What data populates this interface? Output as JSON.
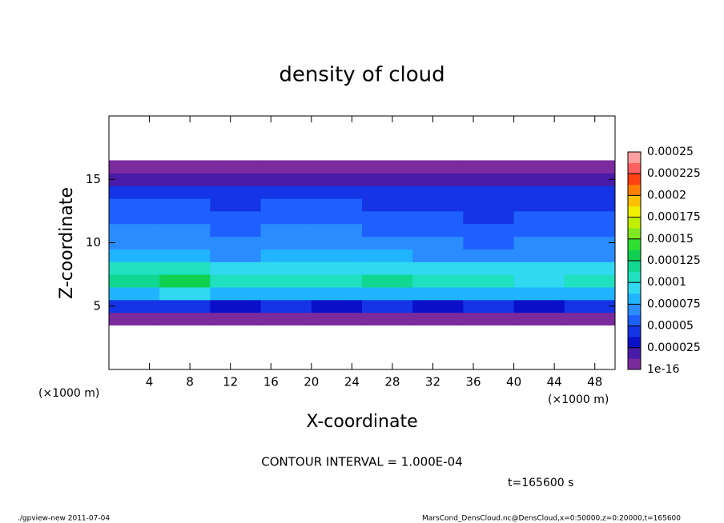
{
  "chart_data": {
    "type": "heatmap",
    "title": "density of cloud",
    "x_label": "X-coordinate",
    "y_label": "Z-coordinate",
    "x_unit": "(×1000 m)",
    "y_unit": "(×1000 m)",
    "xlim": [
      0,
      50
    ],
    "ylim": [
      0,
      20
    ],
    "xticks": [
      4,
      8,
      12,
      16,
      20,
      24,
      28,
      32,
      36,
      40,
      44,
      48
    ],
    "yticks": [
      5,
      10,
      15
    ],
    "x": [
      2.5,
      7.5,
      12.5,
      17.5,
      22.5,
      27.5,
      32.5,
      37.5,
      42.5,
      47.5
    ],
    "z": [
      4,
      5,
      6,
      7,
      8,
      9,
      10,
      11,
      12,
      13,
      14,
      15,
      16
    ],
    "values": [
      [
        1e-06,
        1e-06,
        1e-06,
        1e-06,
        1e-06,
        1e-06,
        1e-06,
        1e-06,
        1e-06,
        1e-06
      ],
      [
        4e-05,
        4e-05,
        3.5e-05,
        4e-05,
        3.5e-05,
        4e-05,
        3.5e-05,
        4e-05,
        3.5e-05,
        4e-05
      ],
      [
        8.5e-05,
        9e-05,
        8e-05,
        8.5e-05,
        8e-05,
        8.5e-05,
        8e-05,
        8e-05,
        8e-05,
        8.5e-05
      ],
      [
        0.00012,
        0.00013,
        0.000105,
        0.00011,
        0.00011,
        0.000115,
        0.000105,
        0.000105,
        0.0001,
        0.000105
      ],
      [
        0.000105,
        0.00011,
        9.5e-05,
        0.0001,
        0.0001,
        0.0001,
        9.5e-05,
        9.5e-05,
        9.5e-05,
        9.5e-05
      ],
      [
        8e-05,
        8e-05,
        7.5e-05,
        8e-05,
        8e-05,
        8e-05,
        7.5e-05,
        7.5e-05,
        7.5e-05,
        7.5e-05
      ],
      [
        7e-05,
        7e-05,
        6.5e-05,
        7e-05,
        7e-05,
        6.5e-05,
        6.5e-05,
        6e-05,
        6.5e-05,
        6.5e-05
      ],
      [
        6.5e-05,
        6.5e-05,
        6e-05,
        6.5e-05,
        6.5e-05,
        6e-05,
        6e-05,
        5.5e-05,
        6e-05,
        6e-05
      ],
      [
        6e-05,
        6e-05,
        5.5e-05,
        6e-05,
        6e-05,
        5.5e-05,
        5.5e-05,
        5e-05,
        5.5e-05,
        5.5e-05
      ],
      [
        5.5e-05,
        5.5e-05,
        5e-05,
        5.5e-05,
        5.5e-05,
        5e-05,
        5e-05,
        5e-05,
        5e-05,
        5e-05
      ],
      [
        4.5e-05,
        4.5e-05,
        4.5e-05,
        4.5e-05,
        4.5e-05,
        4e-05,
        4e-05,
        4e-05,
        4.5e-05,
        4.5e-05
      ],
      [
        2.5e-05,
        2.5e-05,
        2e-05,
        2e-05,
        2e-05,
        1.5e-05,
        1.5e-05,
        1.5e-05,
        2e-05,
        2e-05
      ],
      [
        1e-06,
        1e-06,
        1e-06,
        1e-06,
        1e-06,
        1e-06,
        1e-06,
        1e-06,
        1e-06,
        1e-06
      ]
    ],
    "colorbar_ticks": [
      1e-16,
      2.5e-05,
      5e-05,
      7.5e-05,
      0.0001,
      0.000125,
      0.00015,
      0.000175,
      0.0002,
      0.000225,
      0.00025
    ],
    "colors": [
      "#7b2a9e",
      "#4a1ba8",
      "#0a10c8",
      "#1434e6",
      "#1e60ff",
      "#2a8cff",
      "#20b4ff",
      "#30d8f0",
      "#20e0c0",
      "#10d890",
      "#10d050",
      "#30e030",
      "#80e820",
      "#c0f000",
      "#f0f000",
      "#ffc000",
      "#ff8000",
      "#ff4010",
      "#ff6060",
      "#ffa0a0"
    ],
    "annotation": "CONTOUR INTERVAL = 1.000E-04",
    "time_label": "t=165600 s",
    "footer_left": "./gpview-new   2011-07-04",
    "footer_right": "MarsCond_DensCloud.nc@DensCloud,x=0:50000,z=0:20000,t=165600"
  }
}
